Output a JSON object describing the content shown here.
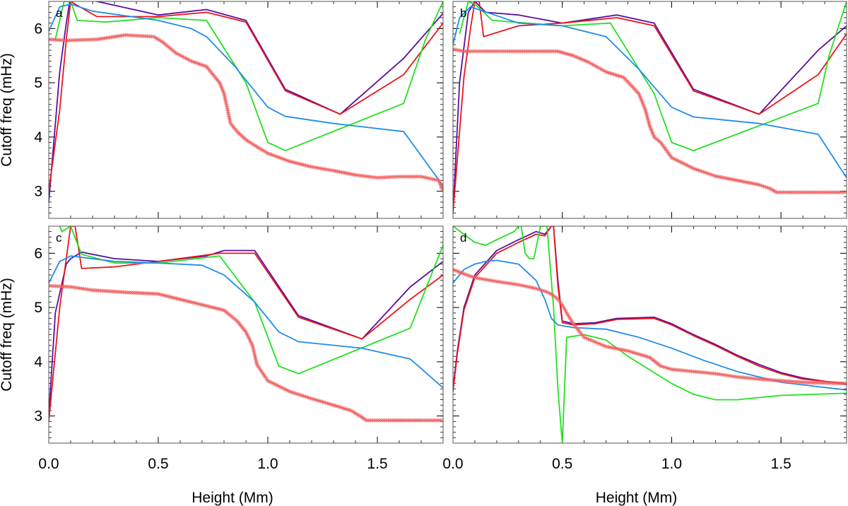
{
  "chart_data": {
    "type": "line",
    "shared": {
      "xlabel": "Height (Mm)",
      "ylabel": "Cutoff freq (mHz)",
      "xlim": [
        0.0,
        1.8
      ],
      "ylim": [
        2.5,
        6.5
      ],
      "xticks": [
        0.0,
        0.5,
        1.0,
        1.5
      ],
      "xtick_labels": [
        "0.0",
        "0.5",
        "1.0",
        "1.5"
      ],
      "yticks": [
        3,
        4,
        5,
        6
      ],
      "ytick_labels": [
        "3",
        "4",
        "5",
        "6"
      ],
      "grid": false,
      "legend": "none"
    },
    "colors": {
      "purple": "#5b0f9e",
      "red": "#e8141c",
      "green": "#22e022",
      "blue": "#1f8ceb",
      "markers": "#f06060"
    },
    "panels": [
      {
        "label": "a",
        "series": [
          {
            "color": "purple",
            "x": [
              0.0,
              0.05,
              0.08,
              0.1,
              0.15,
              0.22,
              0.5,
              0.72,
              0.9,
              1.08,
              1.33,
              1.62,
              1.8
            ],
            "y": [
              2.8,
              5.2,
              6.1,
              6.6,
              6.6,
              6.5,
              6.25,
              6.35,
              6.15,
              4.88,
              4.42,
              5.45,
              6.28
            ]
          },
          {
            "color": "red",
            "x": [
              0.0,
              0.05,
              0.08,
              0.1,
              0.12,
              0.22,
              0.5,
              0.72,
              0.9,
              1.08,
              1.33,
              1.62,
              1.8
            ],
            "y": [
              3.0,
              4.5,
              5.8,
              6.5,
              6.45,
              6.22,
              6.22,
              6.3,
              6.12,
              4.85,
              4.42,
              5.15,
              6.1
            ]
          },
          {
            "color": "green",
            "x": [
              0.03,
              0.07,
              0.1,
              0.13,
              0.26,
              0.5,
              0.72,
              0.9,
              1.0,
              1.08,
              1.62,
              1.72,
              1.8
            ],
            "y": [
              5.8,
              6.5,
              6.5,
              6.15,
              6.12,
              6.2,
              6.15,
              5.0,
              3.9,
              3.75,
              4.62,
              5.8,
              6.5
            ]
          },
          {
            "color": "blue",
            "x": [
              0.0,
              0.05,
              0.1,
              0.2,
              0.5,
              0.65,
              0.72,
              0.85,
              1.0,
              1.08,
              1.3,
              1.62,
              1.8
            ],
            "y": [
              5.95,
              6.4,
              6.45,
              6.32,
              6.15,
              6.0,
              5.85,
              5.3,
              4.55,
              4.38,
              4.25,
              4.1,
              3.1
            ]
          },
          {
            "color": "markers",
            "x": [
              0.0,
              0.08,
              0.22,
              0.35,
              0.48,
              0.52,
              0.58,
              0.65,
              0.72,
              0.78,
              0.8,
              0.83,
              0.86,
              0.9,
              0.95,
              1.0,
              1.1,
              1.2,
              1.3,
              1.4,
              1.5,
              1.6,
              1.7,
              1.78,
              1.8
            ],
            "y": [
              5.8,
              5.78,
              5.8,
              5.88,
              5.85,
              5.75,
              5.55,
              5.4,
              5.3,
              5.0,
              4.8,
              4.25,
              4.1,
              3.95,
              3.82,
              3.7,
              3.55,
              3.45,
              3.38,
              3.3,
              3.25,
              3.27,
              3.27,
              3.2,
              3.0
            ]
          }
        ]
      },
      {
        "label": "b",
        "series": [
          {
            "color": "purple",
            "x": [
              0.0,
              0.03,
              0.07,
              0.1,
              0.15,
              0.3,
              0.5,
              0.75,
              0.92,
              1.1,
              1.4,
              1.67,
              1.8
            ],
            "y": [
              2.6,
              5.0,
              6.3,
              6.5,
              6.3,
              6.25,
              6.1,
              6.25,
              6.1,
              4.88,
              4.42,
              5.6,
              6.05
            ]
          },
          {
            "color": "red",
            "x": [
              0.0,
              0.05,
              0.08,
              0.1,
              0.12,
              0.14,
              0.3,
              0.5,
              0.75,
              0.92,
              1.1,
              1.4,
              1.67,
              1.8
            ],
            "y": [
              2.6,
              5.1,
              6.0,
              6.5,
              6.5,
              5.85,
              6.05,
              6.1,
              6.2,
              6.05,
              4.85,
              4.42,
              5.15,
              5.9
            ]
          },
          {
            "color": "green",
            "x": [
              0.03,
              0.07,
              0.1,
              0.18,
              0.5,
              0.72,
              0.92,
              1.0,
              1.1,
              1.67,
              1.72,
              1.8
            ],
            "y": [
              5.9,
              6.5,
              6.45,
              6.15,
              6.05,
              6.1,
              4.8,
              3.9,
              3.75,
              4.62,
              5.5,
              6.5
            ]
          },
          {
            "color": "blue",
            "x": [
              0.0,
              0.03,
              0.08,
              0.3,
              0.5,
              0.7,
              0.85,
              1.0,
              1.1,
              1.4,
              1.67,
              1.8
            ],
            "y": [
              5.7,
              6.2,
              6.4,
              6.1,
              6.05,
              5.85,
              5.25,
              4.55,
              4.37,
              4.25,
              4.05,
              3.25
            ]
          },
          {
            "color": "markers",
            "x": [
              0.0,
              0.05,
              0.15,
              0.3,
              0.48,
              0.55,
              0.62,
              0.7,
              0.78,
              0.85,
              0.88,
              0.9,
              0.92,
              0.95,
              1.0,
              1.1,
              1.2,
              1.3,
              1.4,
              1.45,
              1.48,
              1.55,
              1.65,
              1.8
            ],
            "y": [
              5.62,
              5.58,
              5.58,
              5.58,
              5.58,
              5.5,
              5.38,
              5.2,
              5.1,
              4.8,
              4.5,
              4.2,
              4.0,
              3.9,
              3.62,
              3.42,
              3.28,
              3.2,
              3.12,
              3.05,
              2.98,
              2.98,
              2.98,
              2.98
            ]
          }
        ]
      },
      {
        "label": "c",
        "series": [
          {
            "color": "purple",
            "x": [
              0.0,
              0.03,
              0.08,
              0.1,
              0.15,
              0.3,
              0.5,
              0.72,
              0.8,
              0.94,
              1.14,
              1.43,
              1.65,
              1.8
            ],
            "y": [
              3.0,
              4.9,
              5.8,
              5.9,
              6.02,
              5.9,
              5.85,
              5.95,
              6.05,
              6.05,
              4.85,
              4.42,
              5.38,
              5.85
            ]
          },
          {
            "color": "red",
            "x": [
              0.0,
              0.05,
              0.1,
              0.12,
              0.15,
              0.3,
              0.5,
              0.78,
              0.94,
              1.14,
              1.43,
              1.65,
              1.8
            ],
            "y": [
              2.9,
              5.0,
              6.5,
              6.5,
              5.72,
              5.75,
              5.85,
              6.0,
              6.0,
              4.82,
              4.42,
              5.15,
              5.6
            ]
          },
          {
            "color": "green",
            "x": [
              0.05,
              0.06,
              0.1,
              0.15,
              0.3,
              0.5,
              0.78,
              0.94,
              1.05,
              1.14,
              1.65,
              1.8
            ],
            "y": [
              6.5,
              6.4,
              6.5,
              5.98,
              5.82,
              5.82,
              5.95,
              5.1,
              3.92,
              3.78,
              4.62,
              6.15
            ]
          },
          {
            "color": "blue",
            "x": [
              0.0,
              0.05,
              0.1,
              0.3,
              0.5,
              0.7,
              0.8,
              0.94,
              1.05,
              1.14,
              1.43,
              1.65,
              1.8
            ],
            "y": [
              5.45,
              5.85,
              5.95,
              5.85,
              5.82,
              5.78,
              5.6,
              5.1,
              4.55,
              4.37,
              4.25,
              4.05,
              3.52
            ]
          },
          {
            "color": "markers",
            "x": [
              0.0,
              0.1,
              0.2,
              0.35,
              0.5,
              0.6,
              0.7,
              0.8,
              0.86,
              0.9,
              0.93,
              0.95,
              1.0,
              1.05,
              1.1,
              1.2,
              1.3,
              1.38,
              1.42,
              1.45,
              1.55,
              1.7,
              1.8
            ],
            "y": [
              5.4,
              5.38,
              5.32,
              5.28,
              5.25,
              5.15,
              5.05,
              4.95,
              4.75,
              4.55,
              4.3,
              3.95,
              3.65,
              3.55,
              3.45,
              3.32,
              3.2,
              3.1,
              3.0,
              2.92,
              2.92,
              2.92,
              2.92
            ]
          }
        ]
      },
      {
        "label": "d",
        "series": [
          {
            "color": "purple",
            "x": [
              0.0,
              0.02,
              0.05,
              0.1,
              0.2,
              0.3,
              0.38,
              0.42,
              0.45,
              0.46,
              0.48,
              0.5,
              0.55,
              0.65,
              0.75,
              0.92,
              1.0,
              1.1,
              1.2,
              1.3,
              1.4,
              1.5,
              1.6,
              1.8
            ],
            "y": [
              3.5,
              4.2,
              5.0,
              5.6,
              6.05,
              6.25,
              6.4,
              6.35,
              6.5,
              6.5,
              5.5,
              4.75,
              4.7,
              4.72,
              4.8,
              4.82,
              4.7,
              4.5,
              4.32,
              4.12,
              3.95,
              3.8,
              3.7,
              3.58
            ]
          },
          {
            "color": "red",
            "x": [
              0.0,
              0.02,
              0.05,
              0.1,
              0.2,
              0.3,
              0.38,
              0.42,
              0.45,
              0.46,
              0.48,
              0.5,
              0.55,
              0.65,
              0.75,
              0.92,
              1.0,
              1.1,
              1.2,
              1.3,
              1.4,
              1.5,
              1.6,
              1.8
            ],
            "y": [
              3.45,
              4.15,
              4.95,
              5.55,
              6.0,
              6.2,
              6.35,
              6.32,
              6.5,
              6.5,
              5.4,
              4.72,
              4.68,
              4.7,
              4.78,
              4.8,
              4.68,
              4.48,
              4.3,
              4.1,
              3.92,
              3.78,
              3.68,
              3.6
            ]
          },
          {
            "color": "green",
            "x": [
              0.0,
              0.05,
              0.1,
              0.15,
              0.2,
              0.28,
              0.31,
              0.33,
              0.35,
              0.37,
              0.4,
              0.43,
              0.46,
              0.48,
              0.5,
              0.52,
              0.6,
              0.7,
              0.8,
              0.9,
              1.0,
              1.1,
              1.2,
              1.3,
              1.5,
              1.8
            ],
            "y": [
              6.5,
              6.35,
              6.2,
              6.15,
              6.25,
              6.4,
              6.55,
              6.0,
              5.9,
              5.9,
              6.5,
              6.5,
              5.0,
              3.5,
              2.5,
              4.45,
              4.5,
              4.4,
              4.1,
              3.85,
              3.6,
              3.4,
              3.3,
              3.3,
              3.38,
              3.42
            ]
          },
          {
            "color": "blue",
            "x": [
              0.0,
              0.05,
              0.1,
              0.15,
              0.2,
              0.3,
              0.38,
              0.42,
              0.45,
              0.48,
              0.55,
              0.7,
              0.85,
              1.0,
              1.15,
              1.3,
              1.5,
              1.8
            ],
            "y": [
              5.45,
              5.7,
              5.8,
              5.85,
              5.87,
              5.8,
              5.5,
              5.15,
              4.8,
              4.68,
              4.63,
              4.6,
              4.45,
              4.25,
              4.02,
              3.82,
              3.62,
              3.48
            ]
          },
          {
            "color": "markers",
            "x": [
              0.0,
              0.05,
              0.1,
              0.2,
              0.3,
              0.38,
              0.42,
              0.45,
              0.48,
              0.5,
              0.52,
              0.55,
              0.6,
              0.7,
              0.8,
              0.9,
              0.95,
              1.0,
              1.1,
              1.2,
              1.3,
              1.4,
              1.6,
              1.8
            ],
            "y": [
              5.7,
              5.62,
              5.55,
              5.48,
              5.42,
              5.35,
              5.3,
              5.25,
              5.15,
              5.05,
              4.9,
              4.7,
              4.45,
              4.28,
              4.2,
              4.08,
              3.92,
              3.86,
              3.82,
              3.78,
              3.72,
              3.68,
              3.62,
              3.6
            ]
          }
        ]
      }
    ]
  }
}
